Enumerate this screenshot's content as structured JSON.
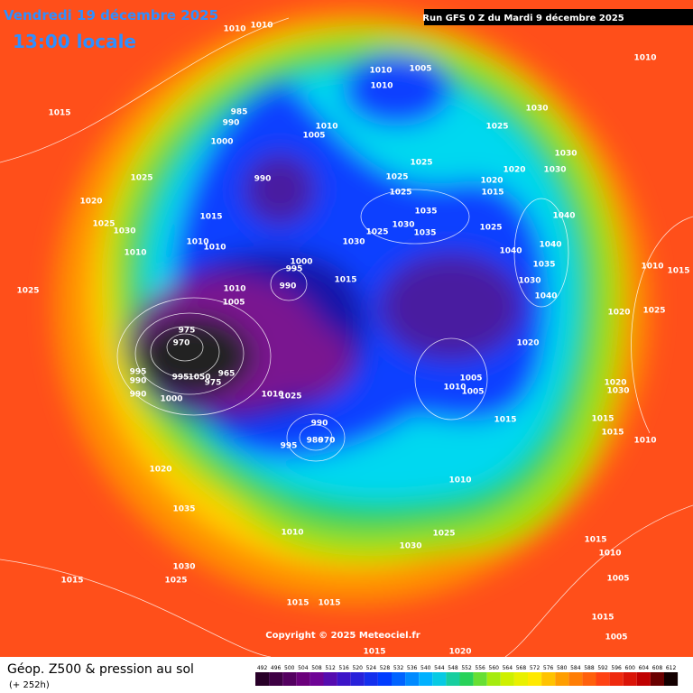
{
  "header": {
    "date": "Vendredi 19 décembre 2025",
    "time": "13:00 locale",
    "run": "Run GFS 0 Z du Mardi 9 décembre 2025"
  },
  "copyright": "Copyright © 2025 Meteociel.fr",
  "legend": {
    "title": "Géop. Z500 & pression au sol",
    "subtitle": "(+ 252h)",
    "scale": [
      492,
      496,
      500,
      504,
      508,
      512,
      516,
      520,
      524,
      528,
      532,
      536,
      540,
      544,
      548,
      552,
      556,
      560,
      564,
      568,
      572,
      576,
      580,
      584,
      588,
      592,
      596,
      600,
      604,
      608,
      612
    ]
  },
  "isobar_labels": [
    1010,
    1010,
    1010,
    1010,
    1005,
    1010,
    1015,
    985,
    990,
    1000,
    1010,
    1005,
    1030,
    1025,
    1030,
    1025,
    1025,
    1025,
    1020,
    1020,
    1030,
    990,
    1020,
    1025,
    1015,
    1025,
    1030,
    1015,
    1035,
    1030,
    1040,
    1025,
    1035,
    1025,
    1010,
    1010,
    1030,
    1040,
    1040,
    1010,
    1000,
    995,
    1035,
    1010,
    1015,
    1025,
    1015,
    1030,
    990,
    1010,
    1040,
    1005,
    1020,
    1025,
    975,
    970,
    1020,
    995,
    990,
    995,
    1050,
    965,
    975,
    1005,
    1010,
    1005,
    990,
    1000,
    1010,
    1025,
    1020,
    1030,
    990,
    980,
    970,
    995,
    1015,
    1015,
    1015,
    1010,
    1020,
    1010,
    1035,
    1010,
    1030,
    1025,
    1015,
    1010,
    1030,
    1025,
    1005,
    1015,
    1015,
    1015,
    1015,
    1005,
    1015,
    1020
  ]
}
